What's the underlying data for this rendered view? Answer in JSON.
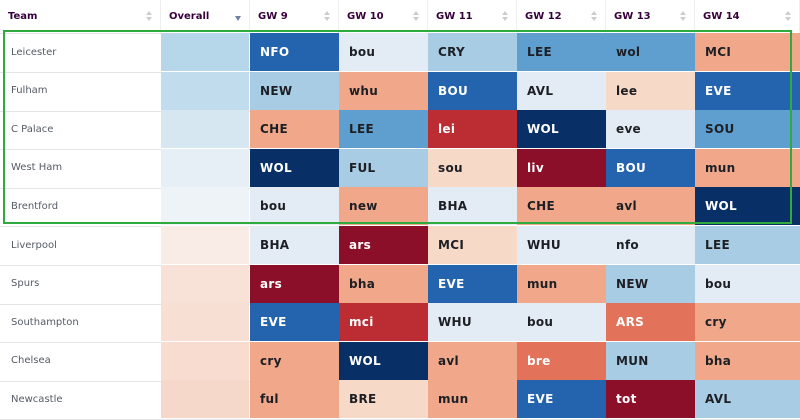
{
  "header": {
    "team": "Team",
    "overall": "Overall",
    "gws": [
      "GW 9",
      "GW 10",
      "GW 11",
      "GW 12",
      "GW 13",
      "GW 14"
    ]
  },
  "highlighted_rows": [
    "Leicester",
    "Fulham",
    "C Palace",
    "West Ham",
    "Brentford"
  ],
  "difficulty_colors": {
    "e1": "#082f66",
    "e2": "#2463ad",
    "e3": "#5e9fcf",
    "e4": "#a7cce4",
    "e5": "#e3ecf4",
    "h1": "#f7d9c8",
    "h2": "#f1a88a",
    "h3": "#e27259",
    "h4": "#bb2c33",
    "h5": "#8c0f29"
  },
  "rows": [
    {
      "team": "Leicester",
      "overall": "#b6d6e9",
      "fixtures": [
        {
          "label": "NFO",
          "c": "e2"
        },
        {
          "label": "bou",
          "c": "e5"
        },
        {
          "label": "CRY",
          "c": "e4"
        },
        {
          "label": "LEE",
          "c": "e3"
        },
        {
          "label": "wol",
          "c": "e3"
        },
        {
          "label": "MCI",
          "c": "h2"
        }
      ]
    },
    {
      "team": "Fulham",
      "overall": "#c1dcec",
      "fixtures": [
        {
          "label": "NEW",
          "c": "e4"
        },
        {
          "label": "whu",
          "c": "h2"
        },
        {
          "label": "BOU",
          "c": "e2"
        },
        {
          "label": "AVL",
          "c": "e5"
        },
        {
          "label": "lee",
          "c": "h1"
        },
        {
          "label": "EVE",
          "c": "e2"
        }
      ]
    },
    {
      "team": "C Palace",
      "overall": "#d6e7f1",
      "fixtures": [
        {
          "label": "CHE",
          "c": "h2"
        },
        {
          "label": "LEE",
          "c": "e3"
        },
        {
          "label": "lei",
          "c": "h4"
        },
        {
          "label": "WOL",
          "c": "e1"
        },
        {
          "label": "eve",
          "c": "e5"
        },
        {
          "label": "SOU",
          "c": "e3"
        }
      ]
    },
    {
      "team": "West Ham",
      "overall": "#e6eff6",
      "fixtures": [
        {
          "label": "WOL",
          "c": "e1"
        },
        {
          "label": "FUL",
          "c": "e4"
        },
        {
          "label": "sou",
          "c": "h1"
        },
        {
          "label": "liv",
          "c": "h5"
        },
        {
          "label": "BOU",
          "c": "e2"
        },
        {
          "label": "mun",
          "c": "h2"
        }
      ]
    },
    {
      "team": "Brentford",
      "overall": "#eef3f8",
      "fixtures": [
        {
          "label": "bou",
          "c": "e5"
        },
        {
          "label": "new",
          "c": "h2"
        },
        {
          "label": "BHA",
          "c": "e5"
        },
        {
          "label": "CHE",
          "c": "h2"
        },
        {
          "label": "avl",
          "c": "h2"
        },
        {
          "label": "WOL",
          "c": "e1"
        }
      ]
    },
    {
      "team": "Liverpool",
      "overall": "#f9ece6",
      "fixtures": [
        {
          "label": "BHA",
          "c": "e5"
        },
        {
          "label": "ars",
          "c": "h5"
        },
        {
          "label": "MCI",
          "c": "h1"
        },
        {
          "label": "WHU",
          "c": "e5"
        },
        {
          "label": "nfo",
          "c": "e5"
        },
        {
          "label": "LEE",
          "c": "e4"
        }
      ]
    },
    {
      "team": "Spurs",
      "overall": "#f8e2d8",
      "fixtures": [
        {
          "label": "ars",
          "c": "h5"
        },
        {
          "label": "bha",
          "c": "h2"
        },
        {
          "label": "EVE",
          "c": "e2"
        },
        {
          "label": "mun",
          "c": "h2"
        },
        {
          "label": "NEW",
          "c": "e4"
        },
        {
          "label": "bou",
          "c": "e5"
        }
      ]
    },
    {
      "team": "Southampton",
      "overall": "#f8dfd4",
      "fixtures": [
        {
          "label": "EVE",
          "c": "e2"
        },
        {
          "label": "mci",
          "c": "h4"
        },
        {
          "label": "WHU",
          "c": "e5"
        },
        {
          "label": "bou",
          "c": "e5"
        },
        {
          "label": "ARS",
          "c": "h3"
        },
        {
          "label": "cry",
          "c": "h2"
        }
      ]
    },
    {
      "team": "Chelsea",
      "overall": "#f7dccf",
      "fixtures": [
        {
          "label": "cry",
          "c": "h2"
        },
        {
          "label": "WOL",
          "c": "e1"
        },
        {
          "label": "avl",
          "c": "h2"
        },
        {
          "label": "bre",
          "c": "h3"
        },
        {
          "label": "MUN",
          "c": "e4"
        },
        {
          "label": "bha",
          "c": "h2"
        }
      ]
    },
    {
      "team": "Newcastle",
      "overall": "#f6d8ca",
      "fixtures": [
        {
          "label": "ful",
          "c": "h2"
        },
        {
          "label": "BRE",
          "c": "h1"
        },
        {
          "label": "mun",
          "c": "h2"
        },
        {
          "label": "EVE",
          "c": "e2"
        },
        {
          "label": "tot",
          "c": "h5"
        },
        {
          "label": "AVL",
          "c": "e4"
        }
      ]
    }
  ]
}
